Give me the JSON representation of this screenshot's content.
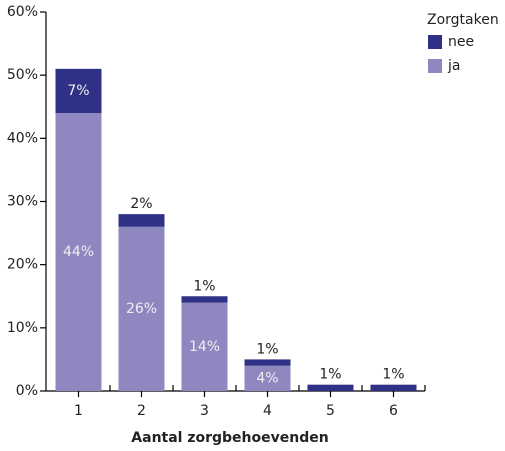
{
  "chart_data": {
    "type": "bar",
    "stacked": true,
    "x_label": "Aantal zorgbehoevenden",
    "legend_title": "Zorgtaken",
    "legend_position": "top-right",
    "categories": [
      "1",
      "2",
      "3",
      "4",
      "5",
      "6"
    ],
    "series": [
      {
        "name": "ja",
        "color": "#8f88c0",
        "values": [
          44,
          26,
          14,
          4,
          0,
          0
        ],
        "value_labels": [
          "44%",
          "26%",
          "14%",
          "4%",
          null,
          null
        ]
      },
      {
        "name": "nee",
        "color": "#2e3186",
        "values": [
          7,
          2,
          1,
          1,
          1,
          1
        ],
        "value_labels": [
          "7%",
          "2%",
          "1%",
          "1%",
          "1%",
          "1%"
        ]
      }
    ],
    "ylim": [
      0,
      60
    ],
    "yticks": [
      {
        "value": 0,
        "label": "0%"
      },
      {
        "value": 10,
        "label": "10%"
      },
      {
        "value": 20,
        "label": "20%"
      },
      {
        "value": 30,
        "label": "30%"
      },
      {
        "value": 40,
        "label": "40%"
      },
      {
        "value": 50,
        "label": "50%"
      },
      {
        "value": 60,
        "label": "60%"
      }
    ]
  }
}
